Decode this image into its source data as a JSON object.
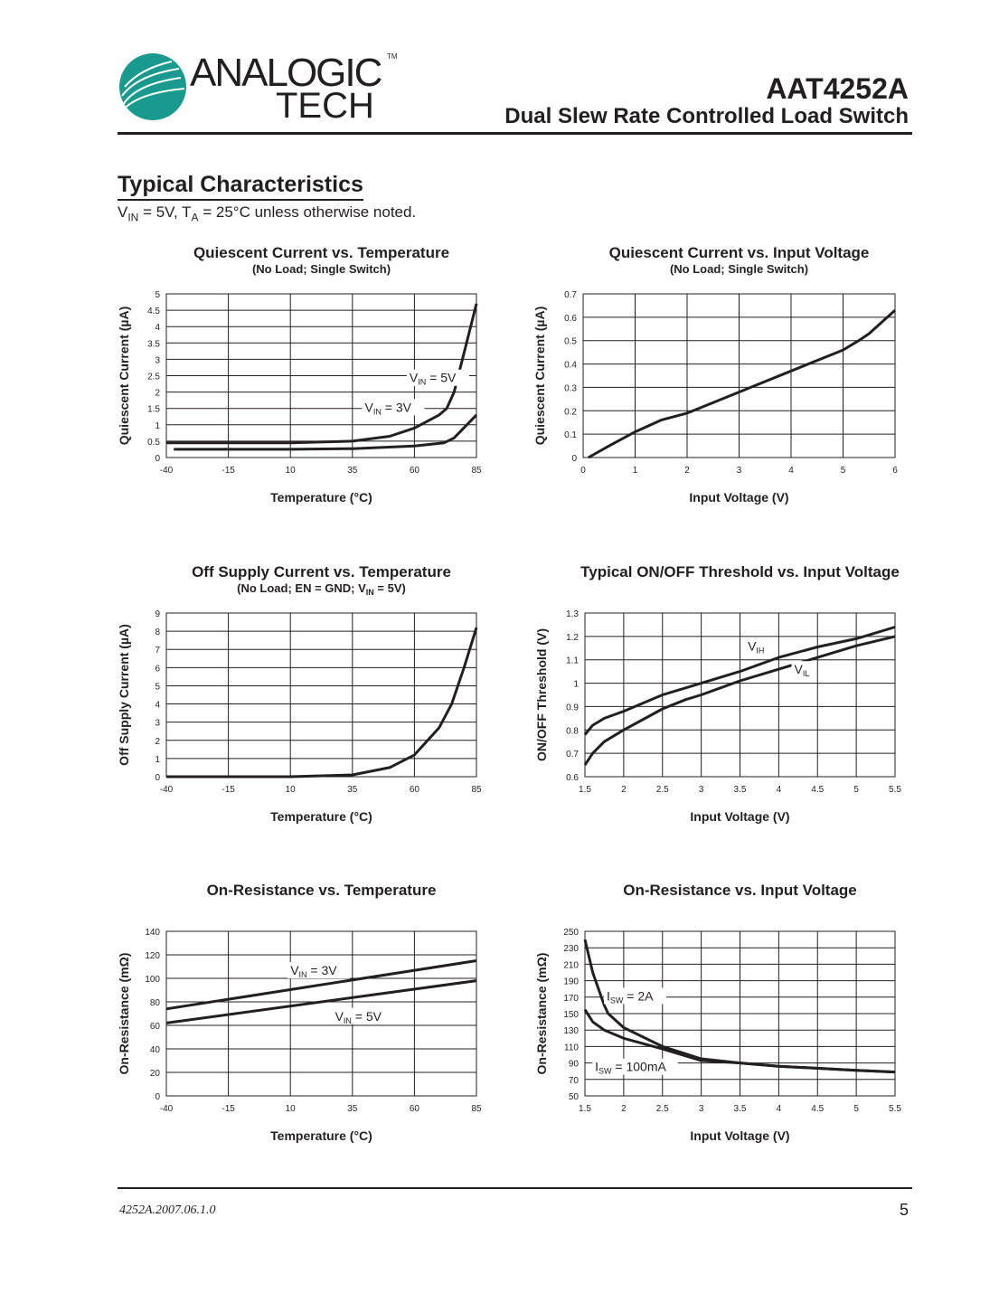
{
  "header": {
    "logo_line1": "ANALOGIC",
    "logo_line2": "TECH",
    "logo_tm": "TM",
    "part_number": "AAT4252A",
    "subtitle": "Dual Slew Rate Controlled Load Switch",
    "logo_color": "#1a9a8f"
  },
  "section": {
    "title": "Typical Characteristics",
    "cond_v": "V",
    "cond_v_sub": "IN",
    "cond_mid": " = 5V, T",
    "cond_t_sub": "A",
    "cond_end": " = 25°C unless otherwise noted."
  },
  "footer": {
    "doc_number": "4252A.2007.06.1.0",
    "page": "5"
  },
  "chart_data": [
    {
      "type": "line",
      "title": "Quiescent Current vs. Temperature",
      "subtitle": "(No Load; Single Switch)",
      "xlabel": "Temperature (°C)",
      "ylabel": "Quiescent Current (µA)",
      "xlim": [
        -40,
        85
      ],
      "ylim": [
        0,
        5
      ],
      "xticks": [
        "-40",
        "-15",
        "10",
        "35",
        "60",
        "85"
      ],
      "yticks": [
        "0",
        "0.5",
        "1",
        "1.5",
        "2",
        "2.5",
        "3",
        "3.5",
        "4",
        "4.5",
        "5"
      ],
      "grid": true,
      "series": [
        {
          "name": "VIN = 5V",
          "x": [
            -40,
            10,
            35,
            50,
            60,
            70,
            73,
            76,
            80,
            85
          ],
          "y": [
            0.45,
            0.45,
            0.5,
            0.65,
            0.9,
            1.3,
            1.5,
            2,
            3.2,
            4.7
          ]
        },
        {
          "name": "VIN = 3V",
          "x": [
            -37,
            10,
            35,
            60,
            72,
            76,
            85
          ],
          "y": [
            0.25,
            0.25,
            0.27,
            0.35,
            0.45,
            0.6,
            1.3
          ]
        }
      ],
      "annotations": [
        {
          "main": "V",
          "sub": "IN",
          "rest": " = 5V",
          "x": 58,
          "y": 2.3
        },
        {
          "main": "V",
          "sub": "IN",
          "rest": " = 3V",
          "x": 40,
          "y": 1.4
        }
      ]
    },
    {
      "type": "line",
      "title": "Quiescent Current vs. Input Voltage",
      "subtitle": "(No Load; Single Switch)",
      "xlabel": "Input Voltage (V)",
      "ylabel": "Quiescent Current (µA)",
      "xlim": [
        0,
        6
      ],
      "ylim": [
        0,
        0.7
      ],
      "xticks": [
        "0",
        "1",
        "2",
        "3",
        "4",
        "5",
        "6"
      ],
      "yticks": [
        "0",
        "0.1",
        "0.2",
        "0.3",
        "0.4",
        "0.5",
        "0.6",
        "0.7"
      ],
      "grid": true,
      "series": [
        {
          "x": [
            0.1,
            0.5,
            1,
            1.5,
            2,
            3,
            4,
            5,
            5.3,
            5.5,
            5.7,
            6
          ],
          "y": [
            0,
            0.05,
            0.11,
            0.16,
            0.19,
            0.28,
            0.37,
            0.46,
            0.5,
            0.53,
            0.57,
            0.63
          ]
        }
      ],
      "annotations": []
    },
    {
      "type": "line",
      "title": "Off Supply Current vs. Temperature",
      "subtitle_parts": {
        "a": "(No Load; EN = GND; V",
        "sub": "IN",
        "b": " = 5V)"
      },
      "xlabel": "Temperature (°C)",
      "ylabel": "Off Supply Current (µA)",
      "xlim": [
        -40,
        85
      ],
      "ylim": [
        0,
        9
      ],
      "xticks": [
        "-40",
        "-15",
        "10",
        "35",
        "60",
        "85"
      ],
      "yticks": [
        "0",
        "1",
        "2",
        "3",
        "4",
        "5",
        "6",
        "7",
        "8",
        "9"
      ],
      "grid": true,
      "series": [
        {
          "x": [
            -40,
            10,
            35,
            50,
            60,
            70,
            75,
            80,
            85
          ],
          "y": [
            0,
            0,
            0.1,
            0.5,
            1.2,
            2.7,
            4,
            6,
            8.2
          ]
        }
      ],
      "annotations": []
    },
    {
      "type": "line",
      "title": "Typical ON/OFF Threshold vs. Input Voltage",
      "xlabel": "Input Voltage (V)",
      "ylabel": "ON/OFF Threshold (V)",
      "xlim": [
        1.5,
        5.5
      ],
      "ylim": [
        0.6,
        1.3
      ],
      "xticks": [
        "1.5",
        "2",
        "2.5",
        "3",
        "3.5",
        "4",
        "4.5",
        "5",
        "5.5"
      ],
      "yticks": [
        "0.6",
        "0.7",
        "0.8",
        "0.9",
        "1",
        "1.1",
        "1.2",
        "1.3"
      ],
      "grid": true,
      "series": [
        {
          "name": "VIH",
          "x": [
            1.5,
            1.6,
            1.75,
            2,
            2.5,
            3,
            3.5,
            4,
            4.5,
            5,
            5.5
          ],
          "y": [
            0.78,
            0.82,
            0.85,
            0.88,
            0.95,
            1.0,
            1.05,
            1.11,
            1.155,
            1.19,
            1.24
          ]
        },
        {
          "name": "VIL",
          "x": [
            1.5,
            1.6,
            1.75,
            2,
            2.5,
            2.8,
            3,
            3.5,
            4,
            4.5,
            5,
            5.5
          ],
          "y": [
            0.65,
            0.7,
            0.75,
            0.8,
            0.89,
            0.93,
            0.95,
            1.01,
            1.06,
            1.11,
            1.16,
            1.2
          ]
        }
      ],
      "annotations": [
        {
          "main": "V",
          "sub": "IH",
          "rest": "",
          "x": 3.6,
          "y": 1.14
        },
        {
          "main": "V",
          "sub": "IL",
          "rest": "",
          "x": 4.2,
          "y": 1.04
        }
      ]
    },
    {
      "type": "line",
      "title": "On-Resistance vs. Temperature",
      "xlabel": "Temperature (°C)",
      "ylabel": "On-Resistance (mΩ)",
      "xlim": [
        -40,
        85
      ],
      "ylim": [
        0,
        140
      ],
      "xticks": [
        "-40",
        "-15",
        "10",
        "35",
        "60",
        "85"
      ],
      "yticks": [
        "0",
        "20",
        "40",
        "60",
        "80",
        "100",
        "120",
        "140"
      ],
      "grid": true,
      "series": [
        {
          "name": "VIN = 3V",
          "x": [
            -40,
            85
          ],
          "y": [
            74,
            115
          ]
        },
        {
          "name": "VIN = 5V",
          "x": [
            -40,
            85
          ],
          "y": [
            62,
            98
          ]
        }
      ],
      "annotations": [
        {
          "main": "V",
          "sub": "IN",
          "rest": " = 3V",
          "x": 10,
          "y": 103
        },
        {
          "main": "V",
          "sub": "IN",
          "rest": " = 5V",
          "x": 28,
          "y": 64
        }
      ]
    },
    {
      "type": "line",
      "title": "On-Resistance vs. Input Voltage",
      "xlabel": "Input Voltage (V)",
      "ylabel": "On-Resistance (mΩ)",
      "xlim": [
        1.5,
        5.5
      ],
      "ylim": [
        50,
        250
      ],
      "xticks": [
        "1.5",
        "2",
        "2.5",
        "3",
        "3.5",
        "4",
        "4.5",
        "5",
        "5.5"
      ],
      "yticks": [
        "50",
        "70",
        "90",
        "110",
        "130",
        "150",
        "170",
        "190",
        "210",
        "230",
        "250"
      ],
      "grid": true,
      "series": [
        {
          "name": "ISW = 2A",
          "x": [
            1.5,
            1.6,
            1.75,
            1.8,
            2,
            2.5,
            3,
            3.5,
            4,
            5,
            5.5
          ],
          "y": [
            240,
            200,
            160,
            150,
            133,
            110,
            95,
            90,
            86,
            81,
            79
          ]
        },
        {
          "name": "ISW = 100mA",
          "x": [
            1.5,
            1.6,
            1.75,
            2,
            2.5,
            3,
            3.5,
            4,
            5,
            5.5
          ],
          "y": [
            155,
            140,
            130,
            120,
            107,
            93,
            90,
            86,
            81,
            79
          ]
        }
      ],
      "annotations": [
        {
          "main": "I",
          "sub": "SW",
          "rest": " = 2A",
          "x": 1.78,
          "y": 166
        },
        {
          "main": "I",
          "sub": "SW",
          "rest": " = 100mA",
          "x": 1.63,
          "y": 80
        }
      ]
    }
  ]
}
